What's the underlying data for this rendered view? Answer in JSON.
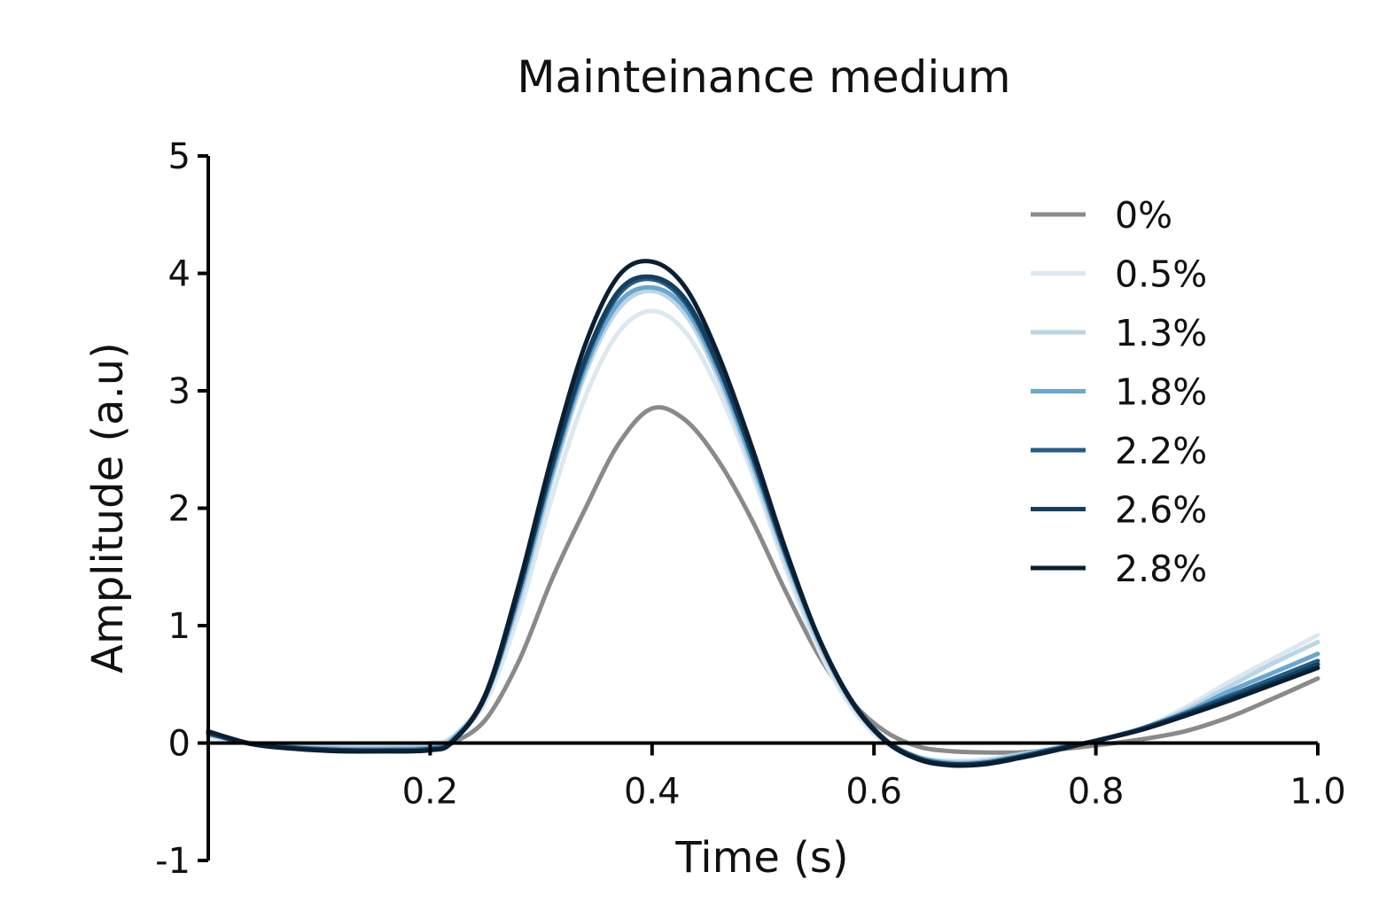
{
  "chart_data": {
    "type": "line",
    "title": "Mainteinance medium",
    "xlabel": "Time (s)",
    "ylabel": "Amplitude (a.u)",
    "xlim": [
      0,
      1.0
    ],
    "ylim": [
      -1,
      5
    ],
    "x_ticks": [
      {
        "value": 0.2,
        "label": "0.2"
      },
      {
        "value": 0.4,
        "label": "0.4"
      },
      {
        "value": 0.6,
        "label": "0.6"
      },
      {
        "value": 0.8,
        "label": "0.8"
      },
      {
        "value": 1.0,
        "label": "1.0"
      }
    ],
    "y_ticks": [
      {
        "value": -1,
        "label": "-1"
      },
      {
        "value": 0,
        "label": "0"
      },
      {
        "value": 1,
        "label": "1"
      },
      {
        "value": 2,
        "label": "2"
      },
      {
        "value": 3,
        "label": "3"
      },
      {
        "value": 4,
        "label": "4"
      },
      {
        "value": 5,
        "label": "5"
      }
    ],
    "grid": false,
    "legend_position": "top-right",
    "x": [
      0,
      0.04,
      0.08,
      0.12,
      0.16,
      0.2,
      0.22,
      0.25,
      0.28,
      0.31,
      0.34,
      0.37,
      0.4,
      0.43,
      0.46,
      0.49,
      0.52,
      0.55,
      0.58,
      0.61,
      0.64,
      0.67,
      0.7,
      0.73,
      0.76,
      0.8,
      0.84,
      0.88,
      0.92,
      0.96,
      1.0
    ],
    "series": [
      {
        "name": "0%",
        "color": "#8a8a8a",
        "values": [
          0.08,
          -0.01,
          -0.04,
          -0.05,
          -0.05,
          -0.05,
          0.0,
          0.2,
          0.7,
          1.4,
          2.0,
          2.55,
          2.85,
          2.75,
          2.4,
          1.9,
          1.3,
          0.75,
          0.35,
          0.1,
          -0.03,
          -0.07,
          -0.08,
          -0.08,
          -0.06,
          -0.02,
          0.03,
          0.1,
          0.22,
          0.38,
          0.55
        ]
      },
      {
        "name": "0.5%",
        "color": "#dce8f0",
        "values": [
          0.05,
          0.0,
          -0.02,
          -0.03,
          -0.03,
          0.0,
          0.05,
          0.35,
          1.1,
          2.1,
          2.95,
          3.5,
          3.68,
          3.5,
          3.0,
          2.3,
          1.5,
          0.8,
          0.3,
          0.0,
          -0.12,
          -0.15,
          -0.14,
          -0.1,
          -0.05,
          0.02,
          0.12,
          0.3,
          0.52,
          0.72,
          0.92
        ]
      },
      {
        "name": "1.3%",
        "color": "#bcd5e6",
        "values": [
          0.07,
          0.0,
          -0.03,
          -0.04,
          -0.04,
          -0.02,
          0.05,
          0.4,
          1.2,
          2.25,
          3.15,
          3.7,
          3.85,
          3.65,
          3.1,
          2.35,
          1.55,
          0.85,
          0.33,
          0.02,
          -0.12,
          -0.16,
          -0.15,
          -0.1,
          -0.05,
          0.02,
          0.12,
          0.28,
          0.48,
          0.68,
          0.86
        ]
      },
      {
        "name": "1.8%",
        "color": "#6aa6ce",
        "values": [
          0.08,
          -0.01,
          -0.04,
          -0.05,
          -0.05,
          -0.04,
          0.03,
          0.4,
          1.25,
          2.3,
          3.2,
          3.75,
          3.88,
          3.7,
          3.15,
          2.4,
          1.6,
          0.88,
          0.35,
          0.03,
          -0.12,
          -0.17,
          -0.16,
          -0.11,
          -0.05,
          0.02,
          0.12,
          0.26,
          0.44,
          0.6,
          0.76
        ]
      },
      {
        "name": "2.2%",
        "color": "#235e88",
        "values": [
          0.08,
          -0.01,
          -0.04,
          -0.06,
          -0.06,
          -0.05,
          0.02,
          0.4,
          1.3,
          2.35,
          3.25,
          3.82,
          3.95,
          3.75,
          3.2,
          2.45,
          1.62,
          0.9,
          0.36,
          0.03,
          -0.13,
          -0.18,
          -0.17,
          -0.12,
          -0.06,
          0.02,
          0.12,
          0.25,
          0.4,
          0.55,
          0.7
        ]
      },
      {
        "name": "2.6%",
        "color": "#143f5e",
        "values": [
          0.09,
          -0.01,
          -0.05,
          -0.06,
          -0.07,
          -0.06,
          0.01,
          0.4,
          1.3,
          2.38,
          3.28,
          3.85,
          3.97,
          3.78,
          3.22,
          2.47,
          1.64,
          0.9,
          0.36,
          0.03,
          -0.13,
          -0.18,
          -0.17,
          -0.12,
          -0.06,
          0.02,
          0.11,
          0.24,
          0.38,
          0.52,
          0.67
        ]
      },
      {
        "name": "2.8%",
        "color": "#0b1f33",
        "values": [
          0.1,
          -0.01,
          -0.05,
          -0.07,
          -0.07,
          -0.06,
          0.01,
          0.42,
          1.35,
          2.45,
          3.4,
          3.98,
          4.1,
          3.88,
          3.3,
          2.52,
          1.66,
          0.9,
          0.35,
          0.02,
          -0.14,
          -0.19,
          -0.18,
          -0.13,
          -0.07,
          0.02,
          0.11,
          0.23,
          0.36,
          0.5,
          0.64
        ]
      }
    ]
  }
}
